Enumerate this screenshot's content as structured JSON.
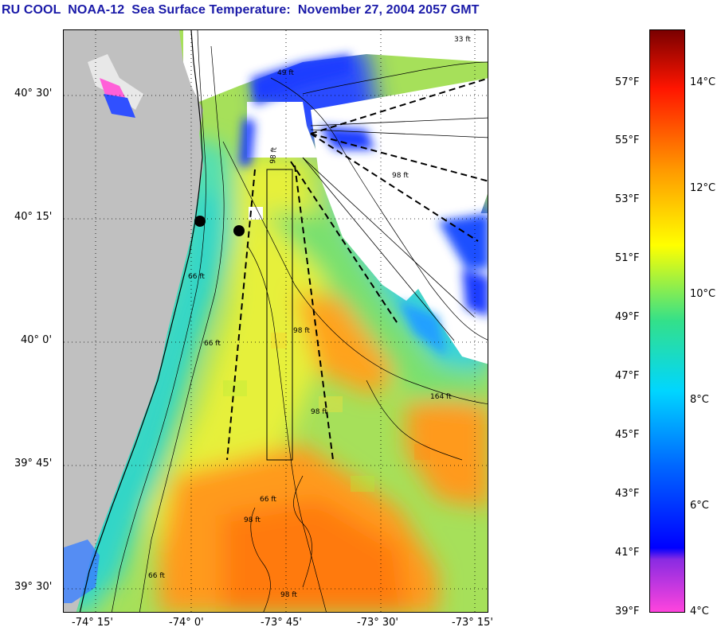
{
  "title": "RU COOL  NOAA-12  Sea Surface Temperature:  November 27, 2004 2057 GMT",
  "lat_labels": [
    "40° 30'",
    "40° 15'",
    "40° 0'",
    "39° 45'",
    "39° 30'"
  ],
  "lon_labels": [
    "-74° 15'",
    "-74° 0'",
    "-73° 45'",
    "-73° 30'",
    "-73° 15'"
  ],
  "contour_labels": [
    "33 ft",
    "49 ft",
    "98 ft",
    "98 ft",
    "66 ft",
    "98 ft",
    "66 ft",
    "98 ft",
    "164 ft",
    "66 ft",
    "98 ft",
    "66 ft",
    "98 ft"
  ],
  "colorbar": {
    "fahrenheit_labels": [
      "57°F",
      "55°F",
      "53°F",
      "51°F",
      "49°F",
      "47°F",
      "45°F",
      "43°F",
      "41°F",
      "39°F"
    ],
    "celsius_labels": [
      "14°C",
      "12°C",
      "10°C",
      "8°C",
      "6°C",
      "4°C"
    ],
    "colors": [
      "#ff44dd",
      "#8a2be2",
      "#0000ff",
      "#00c8ff",
      "#33e0a0",
      "#ffff00",
      "#ff9900",
      "#ff3300",
      "#7a0000"
    ]
  },
  "land_color": "#c0c0c0",
  "cloud_color": "#ffffff"
}
